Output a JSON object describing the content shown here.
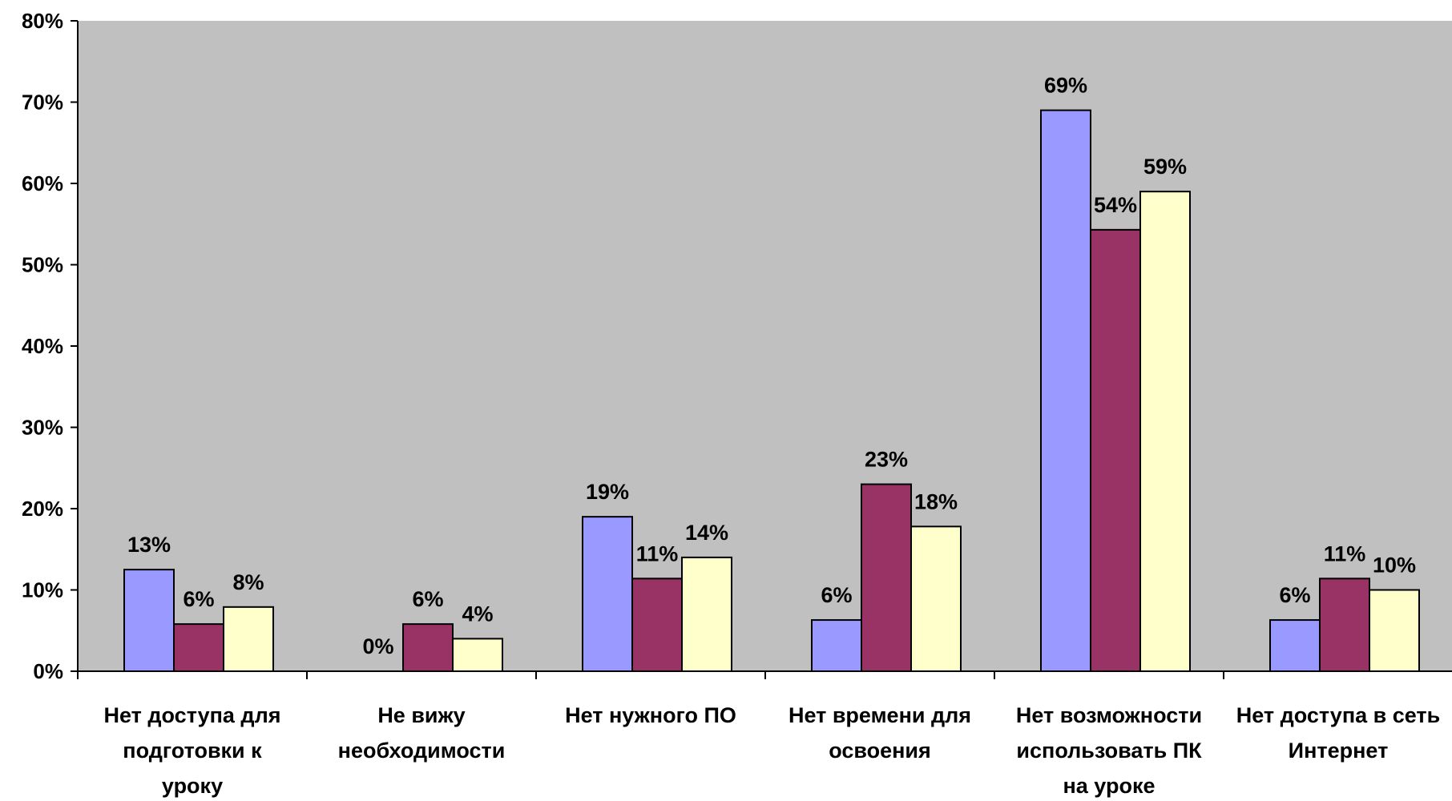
{
  "chart_data": {
    "type": "bar",
    "categories": [
      "Нет доступа для подготовки к уроку",
      "Не вижу необходимости",
      "Нет нужного ПО",
      "Нет времени для освоения",
      "Нет возможности использовать ПК на уроке",
      "Нет доступа в сеть Интернет"
    ],
    "category_lines": [
      [
        "Нет доступа для",
        "подготовки к",
        "уроку"
      ],
      [
        "Не вижу",
        "необходимости"
      ],
      [
        "Нет нужного ПО"
      ],
      [
        "Нет времени для",
        "освоения"
      ],
      [
        "Нет возможности",
        "использовать ПК",
        "на уроке"
      ],
      [
        "Нет доступа в сеть",
        "Интернет"
      ]
    ],
    "series": [
      {
        "color": "#9999ff",
        "values": [
          12.5,
          0,
          19,
          6.3,
          69,
          6.3
        ],
        "labels": [
          "13%",
          "0%",
          "19%",
          "6%",
          "69%",
          "6%"
        ]
      },
      {
        "color": "#993366",
        "values": [
          5.8,
          5.8,
          11.4,
          23,
          54.3,
          11.4
        ],
        "labels": [
          "6%",
          "6%",
          "11%",
          "23%",
          "54%",
          "11%"
        ]
      },
      {
        "color": "#ffffcc",
        "values": [
          7.9,
          4,
          14,
          17.8,
          59,
          10
        ],
        "labels": [
          "8%",
          "4%",
          "14%",
          "18%",
          "59%",
          "10%"
        ]
      }
    ],
    "yticks": [
      "0%",
      "10%",
      "20%",
      "30%",
      "40%",
      "50%",
      "60%",
      "70%",
      "80%"
    ],
    "ylim": [
      0,
      80
    ],
    "title": "",
    "xlabel": "",
    "ylabel": "",
    "plot_background": "#c0c0c0",
    "grid": false,
    "legend": "none"
  }
}
